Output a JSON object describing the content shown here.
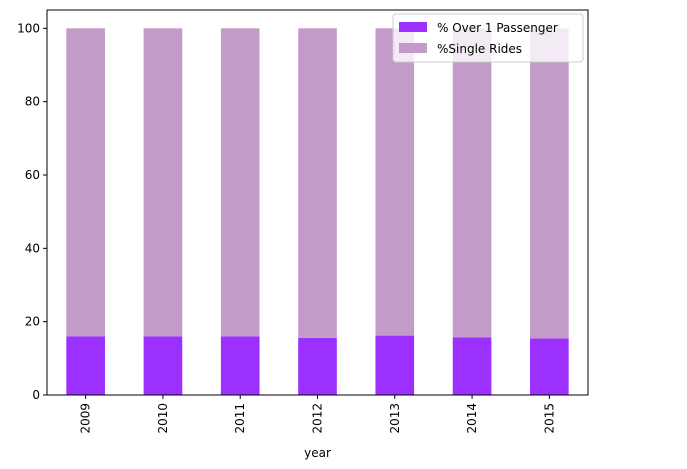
{
  "chart_data": {
    "type": "bar",
    "stacked": true,
    "categories": [
      "2009",
      "2010",
      "2011",
      "2012",
      "2013",
      "2014",
      "2015"
    ],
    "series": [
      {
        "name": "% Over 1 Passenger",
        "color": "#9b30ff",
        "values": [
          16.0,
          16.0,
          16.0,
          15.6,
          16.2,
          15.7,
          15.4
        ]
      },
      {
        "name": "%Single Rides",
        "color": "#c39bc8",
        "values": [
          84.0,
          84.0,
          84.0,
          84.4,
          83.8,
          84.3,
          84.6
        ]
      }
    ],
    "xlabel": "year",
    "ylabel": "",
    "ylim": [
      0,
      105
    ],
    "yticks": [
      0,
      20,
      40,
      60,
      80,
      100
    ],
    "grid": false,
    "legend_position": "top-right"
  }
}
